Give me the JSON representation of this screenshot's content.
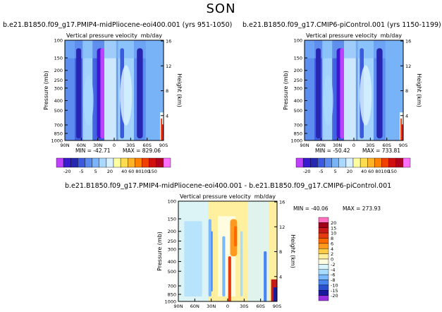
{
  "suptitle": "SON",
  "panels": [
    {
      "title": "b.e21.B1850.f09_g17.PMIP4-midPliocene-eoi400.001 (yrs 951-1050)",
      "variable": "Vertical pressure velocity",
      "units": "mb/day",
      "min_label": "MIN = -42.71",
      "max_label": "MAX = 829.06"
    },
    {
      "title": "b.e21.B1850.f09_g17.CMIP6-piControl.001 (yrs 1150-1199)",
      "variable": "Vertical pressure velocity",
      "units": "mb/day",
      "min_label": "MIN = -50.42",
      "max_label": "MAX = 733.81"
    },
    {
      "title": "b.e21.B1850.f09_g17.PMIP4-midPliocene-eoi400.001 - b.e21.B1850.f09_g17.CMIP6-piControl.001",
      "variable": "Vertical pressure velocity",
      "units": "mb/day",
      "min_label": "MIN = -40.06",
      "max_label": "MAX = 273.93"
    }
  ],
  "chart_data": [
    {
      "type": "heatmap",
      "xlabel": "",
      "ylabel": "Pressure (mb)",
      "y2label": "Height (km)",
      "x_ticks": [
        "90N",
        "60N",
        "30N",
        "0",
        "30S",
        "60S",
        "90S"
      ],
      "y_ticks": [
        100,
        150,
        200,
        250,
        300,
        400,
        500,
        700,
        850,
        1000
      ],
      "y2_ticks": [
        4,
        8,
        12,
        16
      ],
      "ylim": [
        1000,
        100
      ],
      "min": -42.71,
      "max": 829.06,
      "colorbar_levels": [
        "-20",
        "-5",
        "5",
        "20",
        "40",
        "60",
        "80",
        "100",
        "150"
      ]
    },
    {
      "type": "heatmap",
      "xlabel": "",
      "ylabel": "Pressure (mb)",
      "y2label": "Height (km)",
      "x_ticks": [
        "90N",
        "60N",
        "30N",
        "0",
        "30S",
        "60S",
        "90S"
      ],
      "y_ticks": [
        100,
        150,
        200,
        250,
        300,
        400,
        500,
        700,
        850,
        1000
      ],
      "y2_ticks": [
        4,
        8,
        12,
        16
      ],
      "ylim": [
        1000,
        100
      ],
      "min": -50.42,
      "max": 733.81,
      "colorbar_levels": [
        "-20",
        "-5",
        "5",
        "20",
        "40",
        "60",
        "80",
        "100",
        "150"
      ]
    },
    {
      "type": "heatmap",
      "xlabel": "",
      "ylabel": "Pressure (mb)",
      "y2label": "Height (km)",
      "x_ticks": [
        "90N",
        "60N",
        "30N",
        "0",
        "30S",
        "60S",
        "90S"
      ],
      "y_ticks": [
        100,
        150,
        200,
        250,
        300,
        400,
        500,
        700,
        850,
        1000
      ],
      "y2_ticks": [
        4,
        8,
        12,
        16
      ],
      "ylim": [
        1000,
        100
      ],
      "min": -40.06,
      "max": 273.93,
      "colorbar_levels": [
        "20",
        "15",
        "10",
        "8",
        "6",
        "4",
        "2",
        "0",
        "-2",
        "-4",
        "-6",
        "-8",
        "-10",
        "-15",
        "-20"
      ]
    }
  ],
  "colors": {
    "abs_scale": [
      "#c040ff",
      "#3a1ad0",
      "#2626b0",
      "#3c5ae0",
      "#5a8cf0",
      "#7ab4f8",
      "#aad8ff",
      "#d8f0ff",
      "#ffffa0",
      "#ffdc50",
      "#ffb428",
      "#ff8200",
      "#f04000",
      "#d01010",
      "#b00020",
      "#ff70ff"
    ],
    "diff_scale": [
      "#ff70c0",
      "#a00018",
      "#c81818",
      "#e83a10",
      "#ff6a00",
      "#ff9a1e",
      "#ffcc48",
      "#fff0a0",
      "#fffde0",
      "#d8f4ff",
      "#a8dcff",
      "#7ab8ff",
      "#4a86f0",
      "#2a50d0",
      "#1a1aa0",
      "#9a30e0"
    ]
  }
}
